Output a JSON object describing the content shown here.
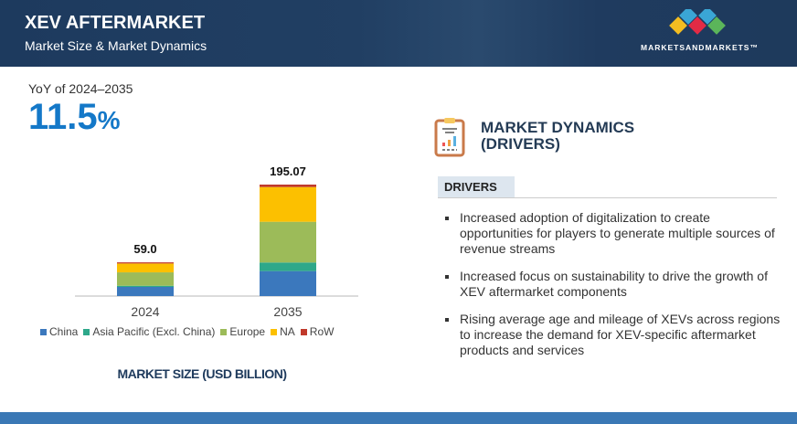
{
  "header": {
    "title": "XEV AFTERMARKET",
    "subtitle": "Market Size & Market Dynamics",
    "logo_text": "MARKETSANDMARKETS™"
  },
  "yoy": {
    "label": "YoY of 2024–2035",
    "value": "11.5",
    "unit": "%"
  },
  "chart_data": {
    "type": "bar",
    "stacked": true,
    "categories": [
      "2024",
      "2035"
    ],
    "totals": [
      "59.0",
      "195.07"
    ],
    "series": [
      {
        "name": "China",
        "color": "#3b78bd",
        "values": [
          16,
          43.7
        ]
      },
      {
        "name": "Asia Pacific (Excl. China)",
        "color": "#2ea88a",
        "values": [
          2,
          15
        ]
      },
      {
        "name": "Europe",
        "color": "#9cbb59",
        "values": [
          23.5,
          71.3
        ]
      },
      {
        "name": "NA",
        "color": "#fcc000",
        "values": [
          15.5,
          60.8
        ]
      },
      {
        "name": "RoW",
        "color": "#c0392b",
        "values": [
          2,
          4.27
        ]
      }
    ],
    "xlabel": "MARKET SIZE (USD BILLION)",
    "ylim": [
      0,
      195.07
    ],
    "grid": false,
    "legend": "bottom"
  },
  "dynamics": {
    "title_line1": "MARKET DYNAMICS",
    "title_line2": "(DRIVERS)",
    "tab": "DRIVERS",
    "drivers": [
      "Increased adoption of digitalization to create opportunities for players to generate multiple sources of revenue streams",
      "Increased focus on sustainability to drive the growth of XEV aftermarket components",
      "Rising average age and mileage of XEVs across regions to increase the demand for XEV-specific aftermarket products and services"
    ]
  }
}
